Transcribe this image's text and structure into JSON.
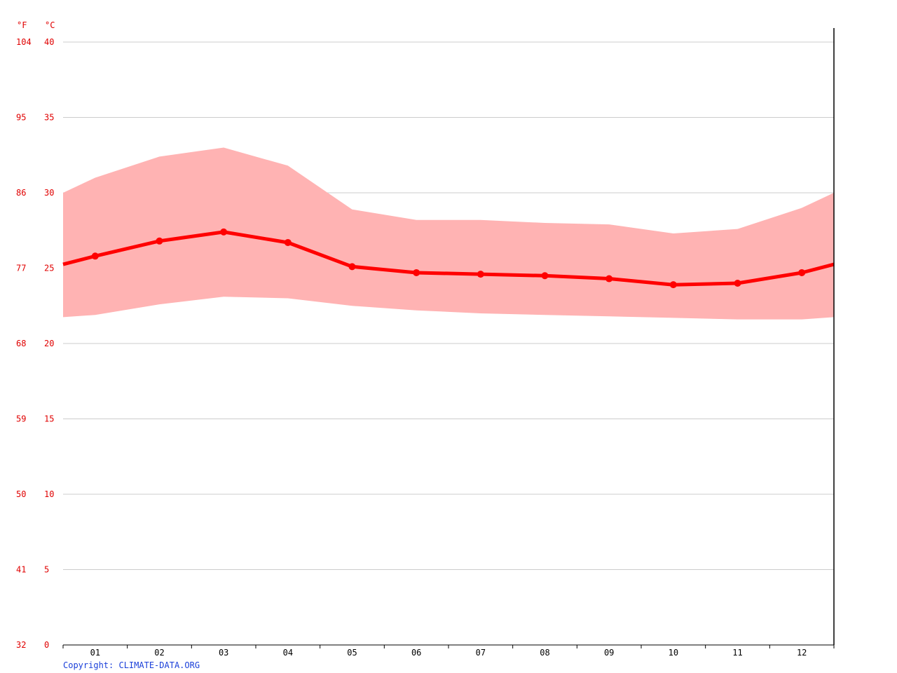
{
  "chart_data": {
    "type": "line",
    "units": {
      "fahrenheit": "°F",
      "celsius": "°C"
    },
    "categories": [
      "01",
      "02",
      "03",
      "04",
      "05",
      "06",
      "07",
      "08",
      "09",
      "10",
      "11",
      "12"
    ],
    "yticks_c": [
      0,
      5,
      10,
      15,
      20,
      25,
      30,
      35,
      40
    ],
    "yticks_f": [
      32,
      41,
      50,
      59,
      68,
      77,
      86,
      95,
      104
    ],
    "ylim": [
      0,
      40
    ],
    "grid": true,
    "series": [
      {
        "role": "mean",
        "values": [
          25.8,
          26.8,
          27.4,
          26.7,
          25.1,
          24.7,
          24.6,
          24.5,
          24.3,
          23.9,
          24.0,
          24.7
        ]
      },
      {
        "role": "max",
        "values": [
          31.0,
          32.4,
          33.0,
          31.8,
          28.9,
          28.2,
          28.2,
          28.0,
          27.9,
          27.3,
          27.6,
          29.0
        ]
      },
      {
        "role": "min",
        "values": [
          21.9,
          22.6,
          23.1,
          23.0,
          22.5,
          22.2,
          22.0,
          21.9,
          21.8,
          21.7,
          21.6,
          21.6
        ]
      }
    ],
    "colors": {
      "mean": "#ff0000",
      "band": "#ffb3b3",
      "grid": "#cccccc",
      "ytick": "#e00000"
    }
  },
  "footer": {
    "copyright": "Copyright: CLIMATE-DATA.ORG"
  }
}
